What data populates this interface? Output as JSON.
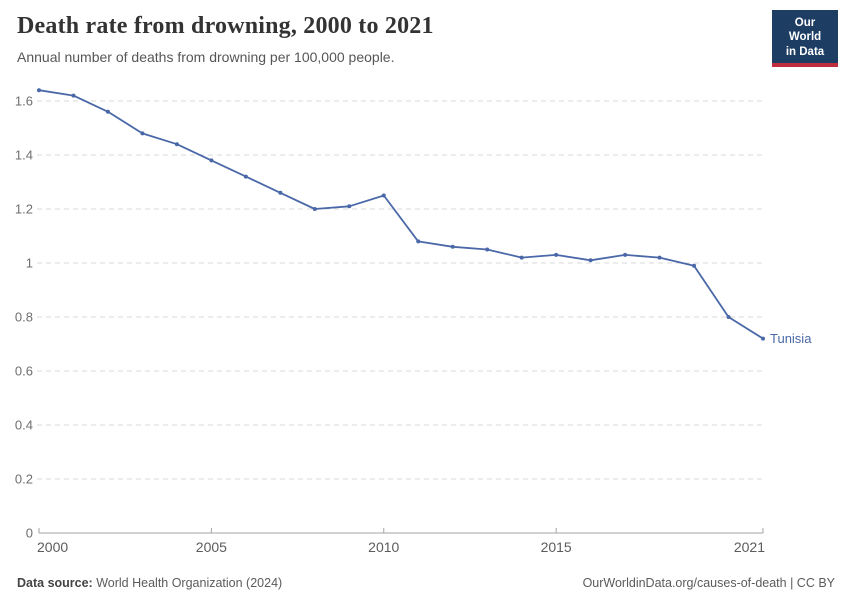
{
  "header": {
    "title": "Death rate from drowning, 2000 to 2021",
    "subtitle": "Annual number of deaths from drowning per 100,000 people.",
    "logo_line1": "Our World",
    "logo_line2": "in Data"
  },
  "chart_data": {
    "type": "line",
    "title": "Death rate from drowning, 2000 to 2021",
    "xlabel": "",
    "ylabel": "Annual number of deaths from drowning per 100,000 people",
    "years": [
      2000,
      2001,
      2002,
      2003,
      2004,
      2005,
      2006,
      2007,
      2008,
      2009,
      2010,
      2011,
      2012,
      2013,
      2014,
      2015,
      2016,
      2017,
      2018,
      2019,
      2020,
      2021
    ],
    "series": [
      {
        "name": "Tunisia",
        "color": "#4a68a8",
        "values": [
          1.64,
          1.62,
          1.56,
          1.48,
          1.44,
          1.38,
          1.32,
          1.26,
          1.2,
          1.21,
          1.25,
          1.08,
          1.06,
          1.05,
          1.02,
          1.03,
          1.01,
          1.03,
          1.02,
          0.99,
          0.8,
          0.72
        ]
      }
    ],
    "x_ticks": [
      2000,
      2005,
      2010,
      2015,
      2021
    ],
    "y_ticks": [
      0,
      0.2,
      0.4,
      0.6,
      0.8,
      1,
      1.2,
      1.4,
      1.6
    ],
    "ylim": [
      0,
      1.68
    ],
    "xlim": [
      2000,
      2021
    ],
    "grid": "horizontal dashed",
    "legend_position": "end-of-line label"
  },
  "footer": {
    "datasource_label": "Data source:",
    "datasource_value": "World Health Organization (2024)",
    "credit": "OurWorldinData.org/causes-of-death | CC BY"
  },
  "colors": {
    "line": "#4a68a8",
    "logo_bg": "#1d3d63",
    "logo_bar": "#bf2e3e",
    "gridline": "#d9d9d9",
    "axis": "#a3a3a3"
  }
}
